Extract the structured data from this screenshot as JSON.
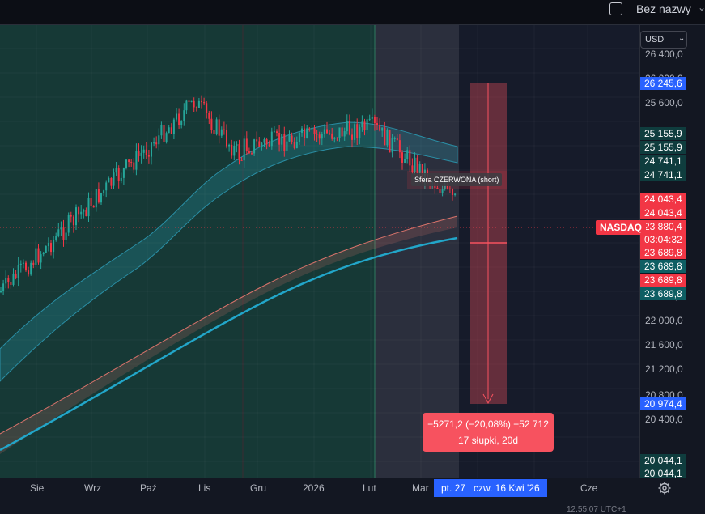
{
  "header": {
    "layout_name": "Bez nazwy",
    "chevron_icon": "chevron-down-icon"
  },
  "currency": {
    "label": "USD",
    "chevron": "⌄"
  },
  "symbol": "NASDAQ",
  "colors": {
    "up": "#26a69a",
    "down": "#f23645",
    "accent_blue": "#2962ff",
    "short_zone": "#f7525f"
  },
  "price_axis": {
    "ticks": [
      "26 400,0",
      "26 000,0",
      "25 600,0",
      "22 400,0",
      "22 000,0",
      "21 600,0",
      "21 200,0",
      "20 800,0",
      "20 400,0"
    ],
    "labels": [
      {
        "text": "26 245,6",
        "bg": "#2962ff"
      },
      {
        "text": "25 155,9",
        "bg": "#0f3d3e"
      },
      {
        "text": "25 155,9",
        "bg": "#0f3d3e"
      },
      {
        "text": "24 741,1",
        "bg": "#0f3d3e"
      },
      {
        "text": "24 741,1",
        "bg": "#0f3d3e"
      },
      {
        "text": "24 043,4",
        "bg": "#f23645"
      },
      {
        "text": "24 043,4",
        "bg": "#f23645"
      },
      {
        "text": "23 880,4",
        "bg": "#f23645"
      },
      {
        "text": "03:04:32",
        "bg": "#f23645"
      },
      {
        "text": "23 689,8",
        "bg": "#f23645"
      },
      {
        "text": "23 689,8",
        "bg": "#0e5e63"
      },
      {
        "text": "23 689,8",
        "bg": "#f23645"
      },
      {
        "text": "23 689,8",
        "bg": "#0e5e63"
      },
      {
        "text": "20 974,4",
        "bg": "#2962ff"
      },
      {
        "text": "20 044,1",
        "bg": "#0f3d3e"
      },
      {
        "text": "20 044,1",
        "bg": "#0f3d3e"
      }
    ]
  },
  "time_axis": {
    "labels": [
      "Sie",
      "Wrz",
      "Paź",
      "Lis",
      "Gru",
      "2026",
      "Lut",
      "Mar",
      "Cze"
    ],
    "highlight_start": "pt. 27",
    "highlight_end": "czw. 16 Kwi '26"
  },
  "measure": {
    "line1": "−5271,2 (−20,08%) −52 712",
    "line2": "17 słupki, 20d"
  },
  "position_tool": {
    "label": "Sfera CZERWONA (short)"
  },
  "bottom_text": "12.55.07 UTC+1"
}
